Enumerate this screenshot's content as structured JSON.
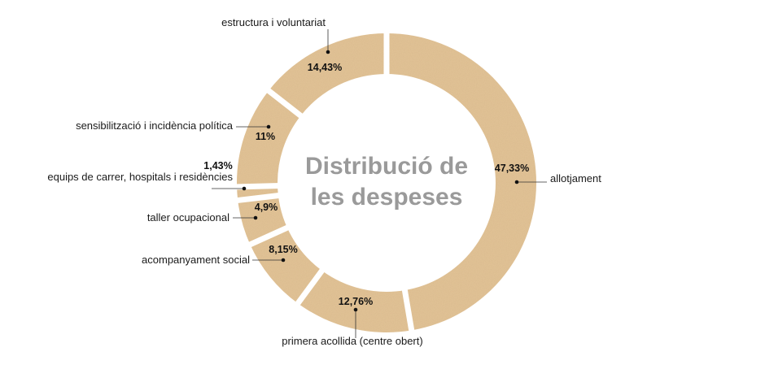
{
  "chart_data": {
    "type": "pie",
    "title_lines": [
      "Distribució de",
      "les despeses"
    ],
    "unit": "%",
    "slices": [
      {
        "label": "allotjament",
        "value": 47.33,
        "value_label": "47,33%"
      },
      {
        "label": "primera acollida (centre obert)",
        "value": 12.76,
        "value_label": "12,76%"
      },
      {
        "label": "acompanyament social",
        "value": 8.15,
        "value_label": "8,15%"
      },
      {
        "label": "taller ocupacional",
        "value": 4.9,
        "value_label": "4,9%"
      },
      {
        "label": "equips de carrer, hospitals i residències",
        "value": 1.43,
        "value_label": "1,43%"
      },
      {
        "label": "sensibilització i incidència política",
        "value": 11,
        "value_label": "11%"
      },
      {
        "label": "estructura i voluntariat",
        "value": 14.43,
        "value_label": "14,43%"
      }
    ],
    "colors": {
      "slice": "#e3c497",
      "gap": "#ffffff",
      "title": "#9a9a9a",
      "text": "#1a1a1a"
    },
    "legend": "none"
  }
}
